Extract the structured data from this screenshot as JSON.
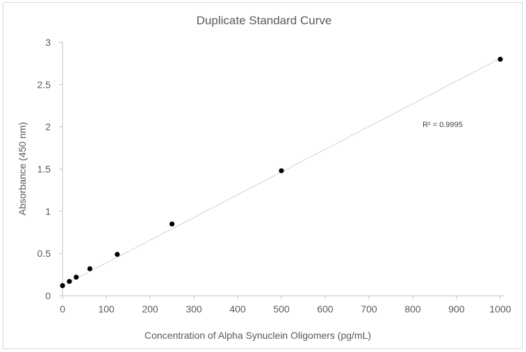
{
  "chart_data": {
    "type": "scatter",
    "title": "Duplicate Standard Curve",
    "xlabel": "Concentration of Alpha Synuclein Oligomers (pg/mL)",
    "ylabel": "Absorbance (450 nm)",
    "xlim": [
      0,
      1000
    ],
    "ylim": [
      0,
      3
    ],
    "xticks": [
      "0",
      "100",
      "200",
      "300",
      "400",
      "500",
      "600",
      "700",
      "800",
      "900",
      "1000"
    ],
    "yticks": [
      "0",
      "0.5",
      "1",
      "1.5",
      "2",
      "2.5",
      "3"
    ],
    "grid": false,
    "series": [
      {
        "x": [
          0,
          15.6,
          31.25,
          62.5,
          125,
          250,
          500,
          1000
        ],
        "y": [
          0.12,
          0.17,
          0.22,
          0.32,
          0.49,
          0.85,
          1.48,
          2.8
        ],
        "color": "#000000"
      }
    ],
    "trendline": {
      "type": "linear",
      "x": [
        0,
        1000
      ],
      "y": [
        0.12,
        2.81
      ],
      "style": "dotted",
      "color": "#a6a6a6",
      "label": "R² = 0.9995"
    }
  }
}
